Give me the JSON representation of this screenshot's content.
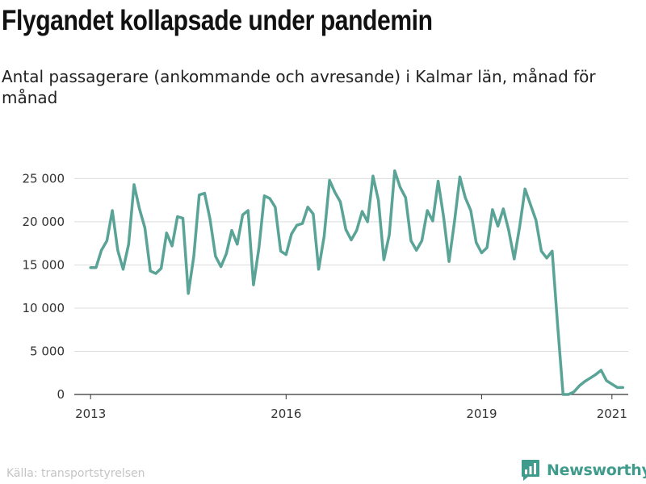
{
  "title": "Flygandet kollapsade under pandemin",
  "subtitle": "Antal passagerare (ankommande och avresande) i Kalmar län, månad för månad",
  "source": "Källa: transportstyrelsen",
  "brand": {
    "name": "Newsworthy",
    "icon": "bar-chart-speech-bubble-icon",
    "color": "#3f9b8c"
  },
  "chart_data": {
    "type": "line",
    "title": "Flygandet kollapsade under pandemin",
    "subtitle": "Antal passagerare (ankommande och avresande) i Kalmar län, månad för månad",
    "xlabel": "",
    "ylabel": "",
    "x_start": "2013-01",
    "x_end": "2021-02",
    "xlim": [
      "2012-10",
      "2021-04"
    ],
    "ylim": [
      0,
      27000
    ],
    "grid": true,
    "x_ticks": [
      {
        "label": "2013",
        "date": "2013-01"
      },
      {
        "label": "2016",
        "date": "2016-01"
      },
      {
        "label": "2019",
        "date": "2019-01"
      },
      {
        "label": "2021",
        "date": "2021-01"
      }
    ],
    "y_ticks": [
      {
        "label": "0",
        "value": 0
      },
      {
        "label": "5 000",
        "value": 5000
      },
      {
        "label": "10 000",
        "value": 10000
      },
      {
        "label": "15 000",
        "value": 15000
      },
      {
        "label": "20 000",
        "value": 20000
      },
      {
        "label": "25 000",
        "value": 25000
      }
    ],
    "series": [
      {
        "color": "#5aa497",
        "values": [
          14700,
          14700,
          16700,
          17800,
          21300,
          16700,
          14500,
          17400,
          24300,
          21500,
          19300,
          14300,
          14000,
          14600,
          18700,
          17200,
          20600,
          20400,
          11700,
          16000,
          23100,
          23300,
          20300,
          16000,
          14800,
          16300,
          19000,
          17400,
          20800,
          21300,
          12700,
          17000,
          23000,
          22700,
          21700,
          16600,
          16200,
          18600,
          19600,
          19800,
          21700,
          20900,
          14500,
          18300,
          24800,
          23400,
          22300,
          19100,
          17900,
          19000,
          21200,
          20000,
          25300,
          22500,
          15600,
          18500,
          25900,
          24000,
          22800,
          17800,
          16700,
          17800,
          21300,
          20100,
          24700,
          20600,
          15400,
          20000,
          25200,
          22800,
          21300,
          17600,
          16400,
          17000,
          21400,
          19500,
          21500,
          19000,
          15700,
          19400,
          23800,
          22000,
          20200,
          16600,
          15800,
          16600,
          8000,
          0,
          0,
          300,
          1000,
          1500,
          1900,
          2300,
          2800,
          1600,
          1200,
          800,
          800
        ]
      }
    ]
  }
}
